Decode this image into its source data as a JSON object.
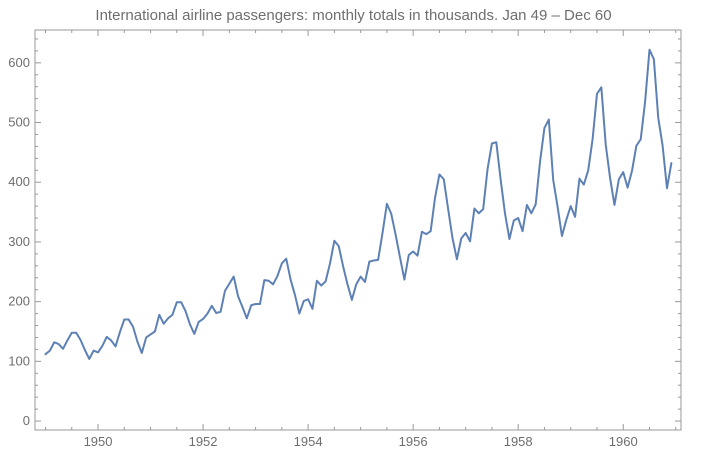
{
  "chart_data": {
    "type": "line",
    "title": "International airline passengers: monthly totals in thousands. Jan 49 – Dec 60",
    "xlabel": "",
    "ylabel": "",
    "xlim": [
      1948.8,
      1961.1
    ],
    "ylim": [
      -15,
      655
    ],
    "x_ticks": [
      1950,
      1952,
      1954,
      1956,
      1958,
      1960
    ],
    "y_ticks": [
      0,
      100,
      200,
      300,
      400,
      500,
      600
    ],
    "grid": false,
    "line_color": "#5e81b5",
    "x_start": 1949.0,
    "x_step": 0.0833333,
    "series": [
      {
        "values": [
          112,
          118,
          132,
          129,
          121,
          135,
          148,
          148,
          136,
          119,
          104,
          118,
          115,
          126,
          141,
          135,
          125,
          149,
          170,
          170,
          158,
          133,
          114,
          140,
          145,
          150,
          178,
          163,
          172,
          178,
          199,
          199,
          184,
          162,
          146,
          166,
          171,
          180,
          193,
          181,
          183,
          218,
          230,
          242,
          209,
          191,
          172,
          194,
          196,
          196,
          236,
          235,
          229,
          243,
          264,
          272,
          237,
          211,
          180,
          201,
          204,
          188,
          235,
          227,
          234,
          264,
          302,
          293,
          259,
          229,
          203,
          229,
          242,
          233,
          267,
          269,
          270,
          315,
          364,
          347,
          312,
          274,
          237,
          278,
          284,
          277,
          317,
          313,
          318,
          374,
          413,
          405,
          355,
          306,
          271,
          306,
          315,
          301,
          356,
          348,
          355,
          422,
          465,
          467,
          404,
          347,
          305,
          336,
          340,
          318,
          362,
          348,
          363,
          435,
          491,
          505,
          404,
          359,
          310,
          337,
          360,
          342,
          406,
          396,
          420,
          472,
          548,
          559,
          463,
          407,
          362,
          405,
          417,
          391,
          419,
          461,
          472,
          535,
          622,
          606,
          508,
          461,
          390,
          432
        ]
      }
    ]
  }
}
